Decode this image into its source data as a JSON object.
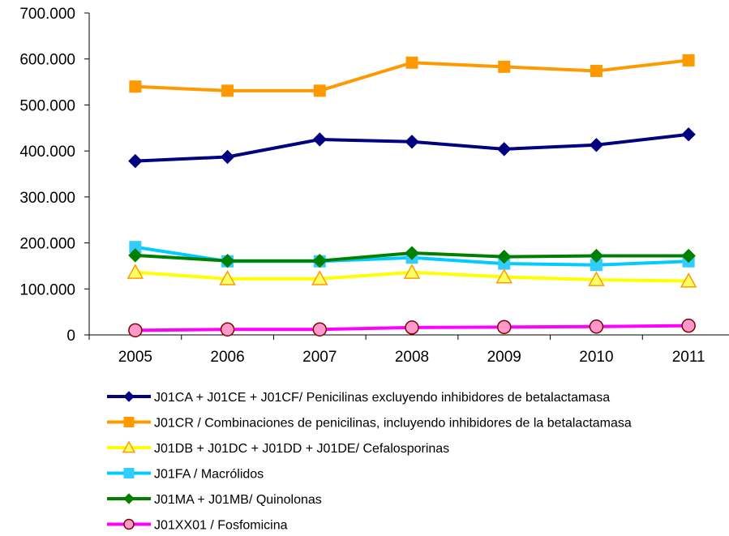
{
  "chart_data": {
    "type": "line",
    "title": "",
    "xlabel": "",
    "ylabel": "",
    "categories": [
      "2005",
      "2006",
      "2007",
      "2008",
      "2009",
      "2010",
      "2011"
    ],
    "ylim": [
      0,
      700000
    ],
    "y_ticks": [
      0,
      100000,
      200000,
      300000,
      400000,
      500000,
      600000,
      700000
    ],
    "y_tick_labels": [
      "0",
      "100.000",
      "200.000",
      "300.000",
      "400.000",
      "500.000",
      "600.000",
      "700.000"
    ],
    "grid": false,
    "legend_position": "bottom",
    "series": [
      {
        "name": "J01CA + J01CE + J01CF/ Penicilinas excluyendo inhibidores de betalactamasa",
        "color": "#000080",
        "marker": "diamond",
        "marker_fill": "#000080",
        "values": [
          378000,
          387000,
          425000,
          420000,
          404000,
          413000,
          436000
        ]
      },
      {
        "name": "J01CR / Combinaciones de penicilinas, incluyendo inhibidores de la betalactamasa",
        "color": "#ff9900",
        "marker": "square",
        "marker_fill": "#ff9900",
        "values": [
          540000,
          531000,
          531000,
          592000,
          583000,
          574000,
          597000
        ]
      },
      {
        "name": "J01DB + J01DC + J01DD + J01DE/ Cefalosporinas",
        "color": "#ffff00",
        "marker": "triangle",
        "marker_fill": "#ffff66",
        "marker_stroke": "#ff9900",
        "values": [
          136000,
          122000,
          122000,
          136000,
          126000,
          120000,
          117000
        ]
      },
      {
        "name": "J01FA / Macrólidos",
        "color": "#00ccff",
        "marker": "square",
        "marker_fill": "#33ccff",
        "values": [
          191000,
          160000,
          160000,
          168000,
          155000,
          152000,
          160000
        ]
      },
      {
        "name": "J01MA +  J01MB/ Quinolonas",
        "color": "#008000",
        "marker": "diamond",
        "marker_fill": "#008000",
        "values": [
          173000,
          161000,
          161000,
          178000,
          170000,
          172000,
          172000
        ]
      },
      {
        "name": "J01XX01 / Fosfomicina",
        "color": "#ff00ff",
        "marker": "circle",
        "marker_fill": "#ff99cc",
        "marker_stroke": "#800000",
        "values": [
          10000,
          12000,
          12000,
          16000,
          17000,
          18000,
          20000
        ]
      }
    ]
  }
}
